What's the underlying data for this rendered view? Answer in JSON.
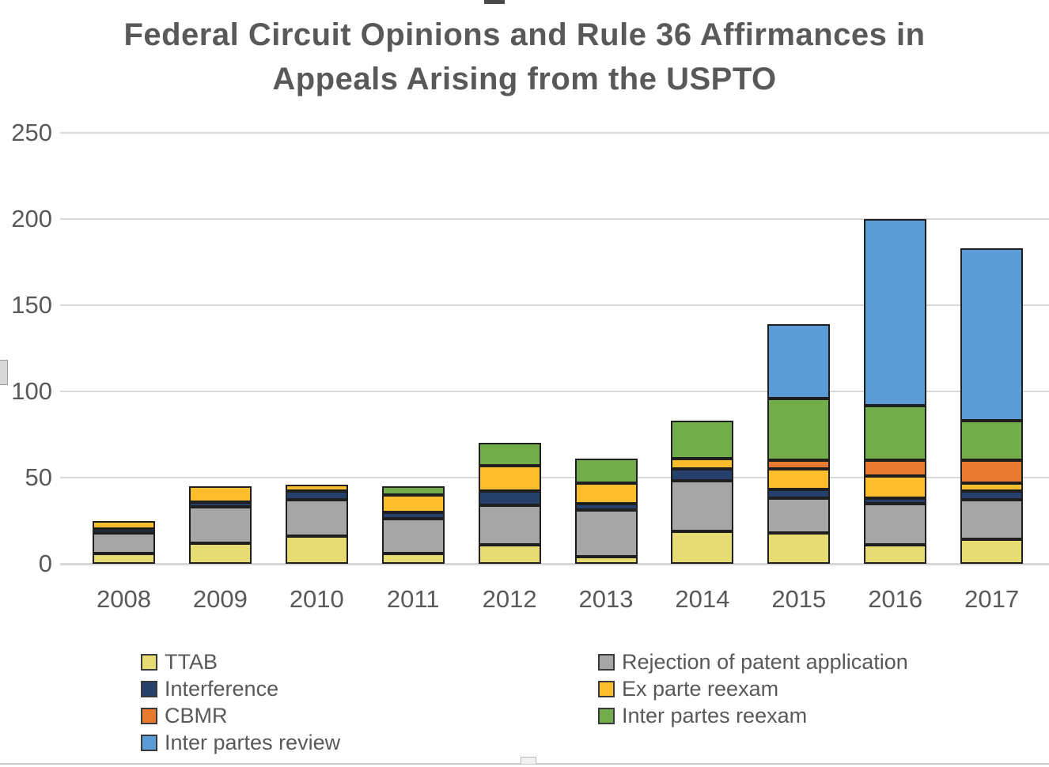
{
  "title": {
    "line1": "Federal Circuit Opinions and Rule 36 Affirmances in",
    "line2": "Appeals Arising from the USPTO"
  },
  "chart_data": {
    "type": "bar",
    "stacked": true,
    "title": "Federal Circuit Opinions and Rule 36 Affirmances in Appeals Arising from the USPTO",
    "xlabel": "",
    "ylabel": "",
    "grid": true,
    "legend_position": "bottom",
    "ylim": [
      0,
      250
    ],
    "yticks": [
      0,
      50,
      100,
      150,
      200,
      250
    ],
    "categories": [
      "2008",
      "2009",
      "2010",
      "2011",
      "2012",
      "2013",
      "2014",
      "2015",
      "2016",
      "2017"
    ],
    "series": [
      {
        "name": "TTAB",
        "color": "#E7DB74",
        "values": [
          6,
          12,
          16,
          6,
          11,
          4,
          19,
          18,
          11,
          14
        ]
      },
      {
        "name": "Rejection of patent application",
        "color": "#A6A6A6",
        "values": [
          12,
          21,
          21,
          20,
          23,
          27,
          29,
          20,
          24,
          23
        ]
      },
      {
        "name": "Interference",
        "color": "#24406B",
        "values": [
          2,
          3,
          5,
          4,
          8,
          4,
          7,
          5,
          3,
          5
        ]
      },
      {
        "name": "Ex parte reexam",
        "color": "#FCBE2C",
        "values": [
          5,
          9,
          4,
          10,
          15,
          12,
          6,
          12,
          13,
          5
        ]
      },
      {
        "name": "CBMR",
        "color": "#E87B2F",
        "values": [
          0,
          0,
          0,
          0,
          0,
          0,
          0,
          5,
          9,
          13
        ]
      },
      {
        "name": "Inter partes reexam",
        "color": "#72AC4B",
        "values": [
          0,
          0,
          0,
          5,
          13,
          14,
          22,
          36,
          32,
          23
        ]
      },
      {
        "name": "Inter partes review",
        "color": "#5C9CD6",
        "values": [
          0,
          0,
          0,
          0,
          0,
          0,
          0,
          43,
          108,
          100
        ]
      }
    ],
    "totals": [
      25,
      45,
      46,
      45,
      70,
      61,
      83,
      139,
      200,
      183
    ]
  },
  "legend": {
    "columns": [
      {
        "items": [
          {
            "label": "TTAB",
            "color": "#E7DB74"
          },
          {
            "label": "Interference",
            "color": "#24406B"
          },
          {
            "label": "CBMR",
            "color": "#E87B2F"
          },
          {
            "label": "Inter partes review",
            "color": "#5C9CD6"
          }
        ]
      },
      {
        "items": [
          {
            "label": "Rejection of patent application",
            "color": "#A6A6A6"
          },
          {
            "label": "Ex parte reexam",
            "color": "#FCBE2C"
          },
          {
            "label": "Inter partes reexam",
            "color": "#72AC4B"
          }
        ]
      }
    ]
  }
}
